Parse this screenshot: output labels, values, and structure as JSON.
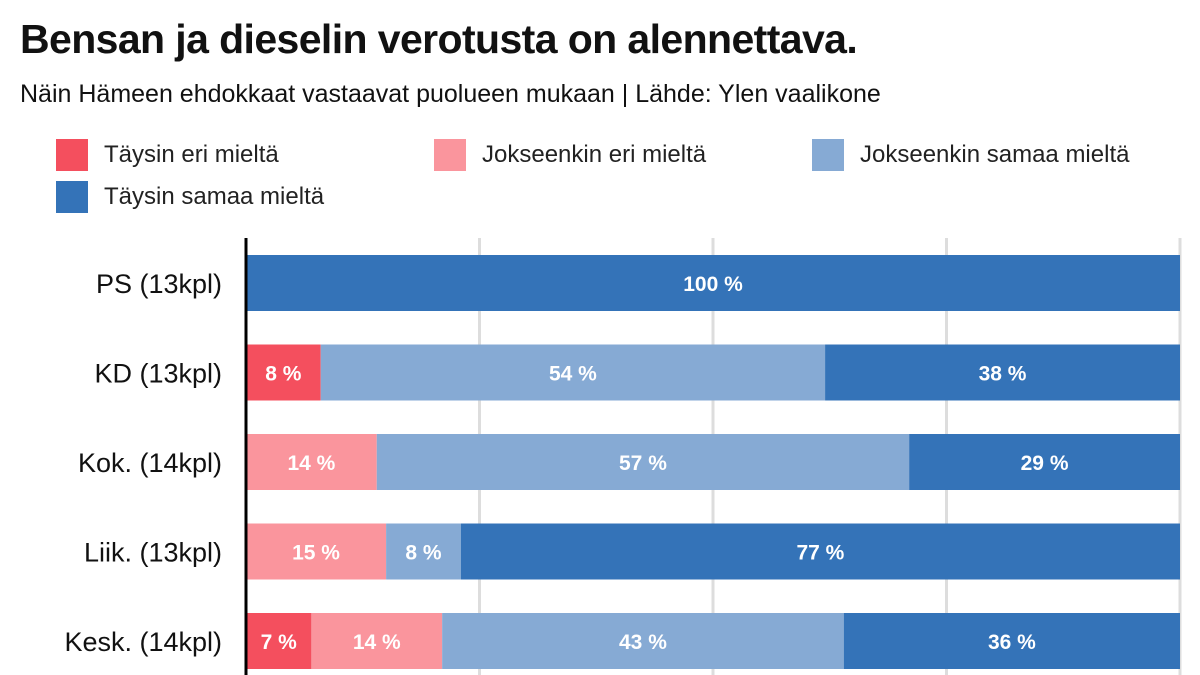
{
  "title": "Bensan ja dieselin verotusta on alennettava.",
  "subtitle": "Näin Hämeen ehdokkaat vastaavat puolueen mukaan | Lähde: Ylen vaalikone",
  "colors": {
    "taysin_eri": "#f44f5e",
    "jokseenkin_eri": "#fa959d",
    "jokseenkin_samaa": "#86aad4",
    "taysin_samaa": "#3473b8",
    "grid": "#dddddd",
    "axis": "#000000"
  },
  "legend": [
    {
      "label": "Täysin eri mieltä",
      "color": "#f44f5e"
    },
    {
      "label": "Jokseenkin eri mieltä",
      "color": "#fa959d"
    },
    {
      "label": "Jokseenkin samaa mieltä",
      "color": "#86aad4"
    },
    {
      "label": "Täysin samaa mieltä",
      "color": "#3473b8"
    }
  ],
  "chart_data": {
    "type": "bar",
    "orientation": "horizontal",
    "stacked": true,
    "title": "Bensan ja dieselin verotusta on alennettava.",
    "subtitle": "Näin Hämeen ehdokkaat vastaavat puolueen mukaan | Lähde: Ylen vaalikone",
    "categories": [
      "PS (13kpl)",
      "KD (13kpl)",
      "Kok. (14kpl)",
      "Liik. (13kpl)",
      "Kesk. (14kpl)"
    ],
    "series": [
      {
        "name": "Täysin eri mieltä",
        "color": "#f44f5e",
        "values": [
          0,
          8,
          0,
          0,
          7
        ]
      },
      {
        "name": "Jokseenkin eri mieltä",
        "color": "#fa959d",
        "values": [
          0,
          0,
          14,
          15,
          14
        ]
      },
      {
        "name": "Jokseenkin samaa mieltä",
        "color": "#86aad4",
        "values": [
          0,
          54,
          57,
          8,
          43
        ]
      },
      {
        "name": "Täysin samaa mieltä",
        "color": "#3473b8",
        "values": [
          100,
          38,
          29,
          77,
          36
        ]
      }
    ],
    "value_suffix": " %",
    "xlim": [
      0,
      100
    ],
    "grid": true,
    "legend_position": "top"
  }
}
